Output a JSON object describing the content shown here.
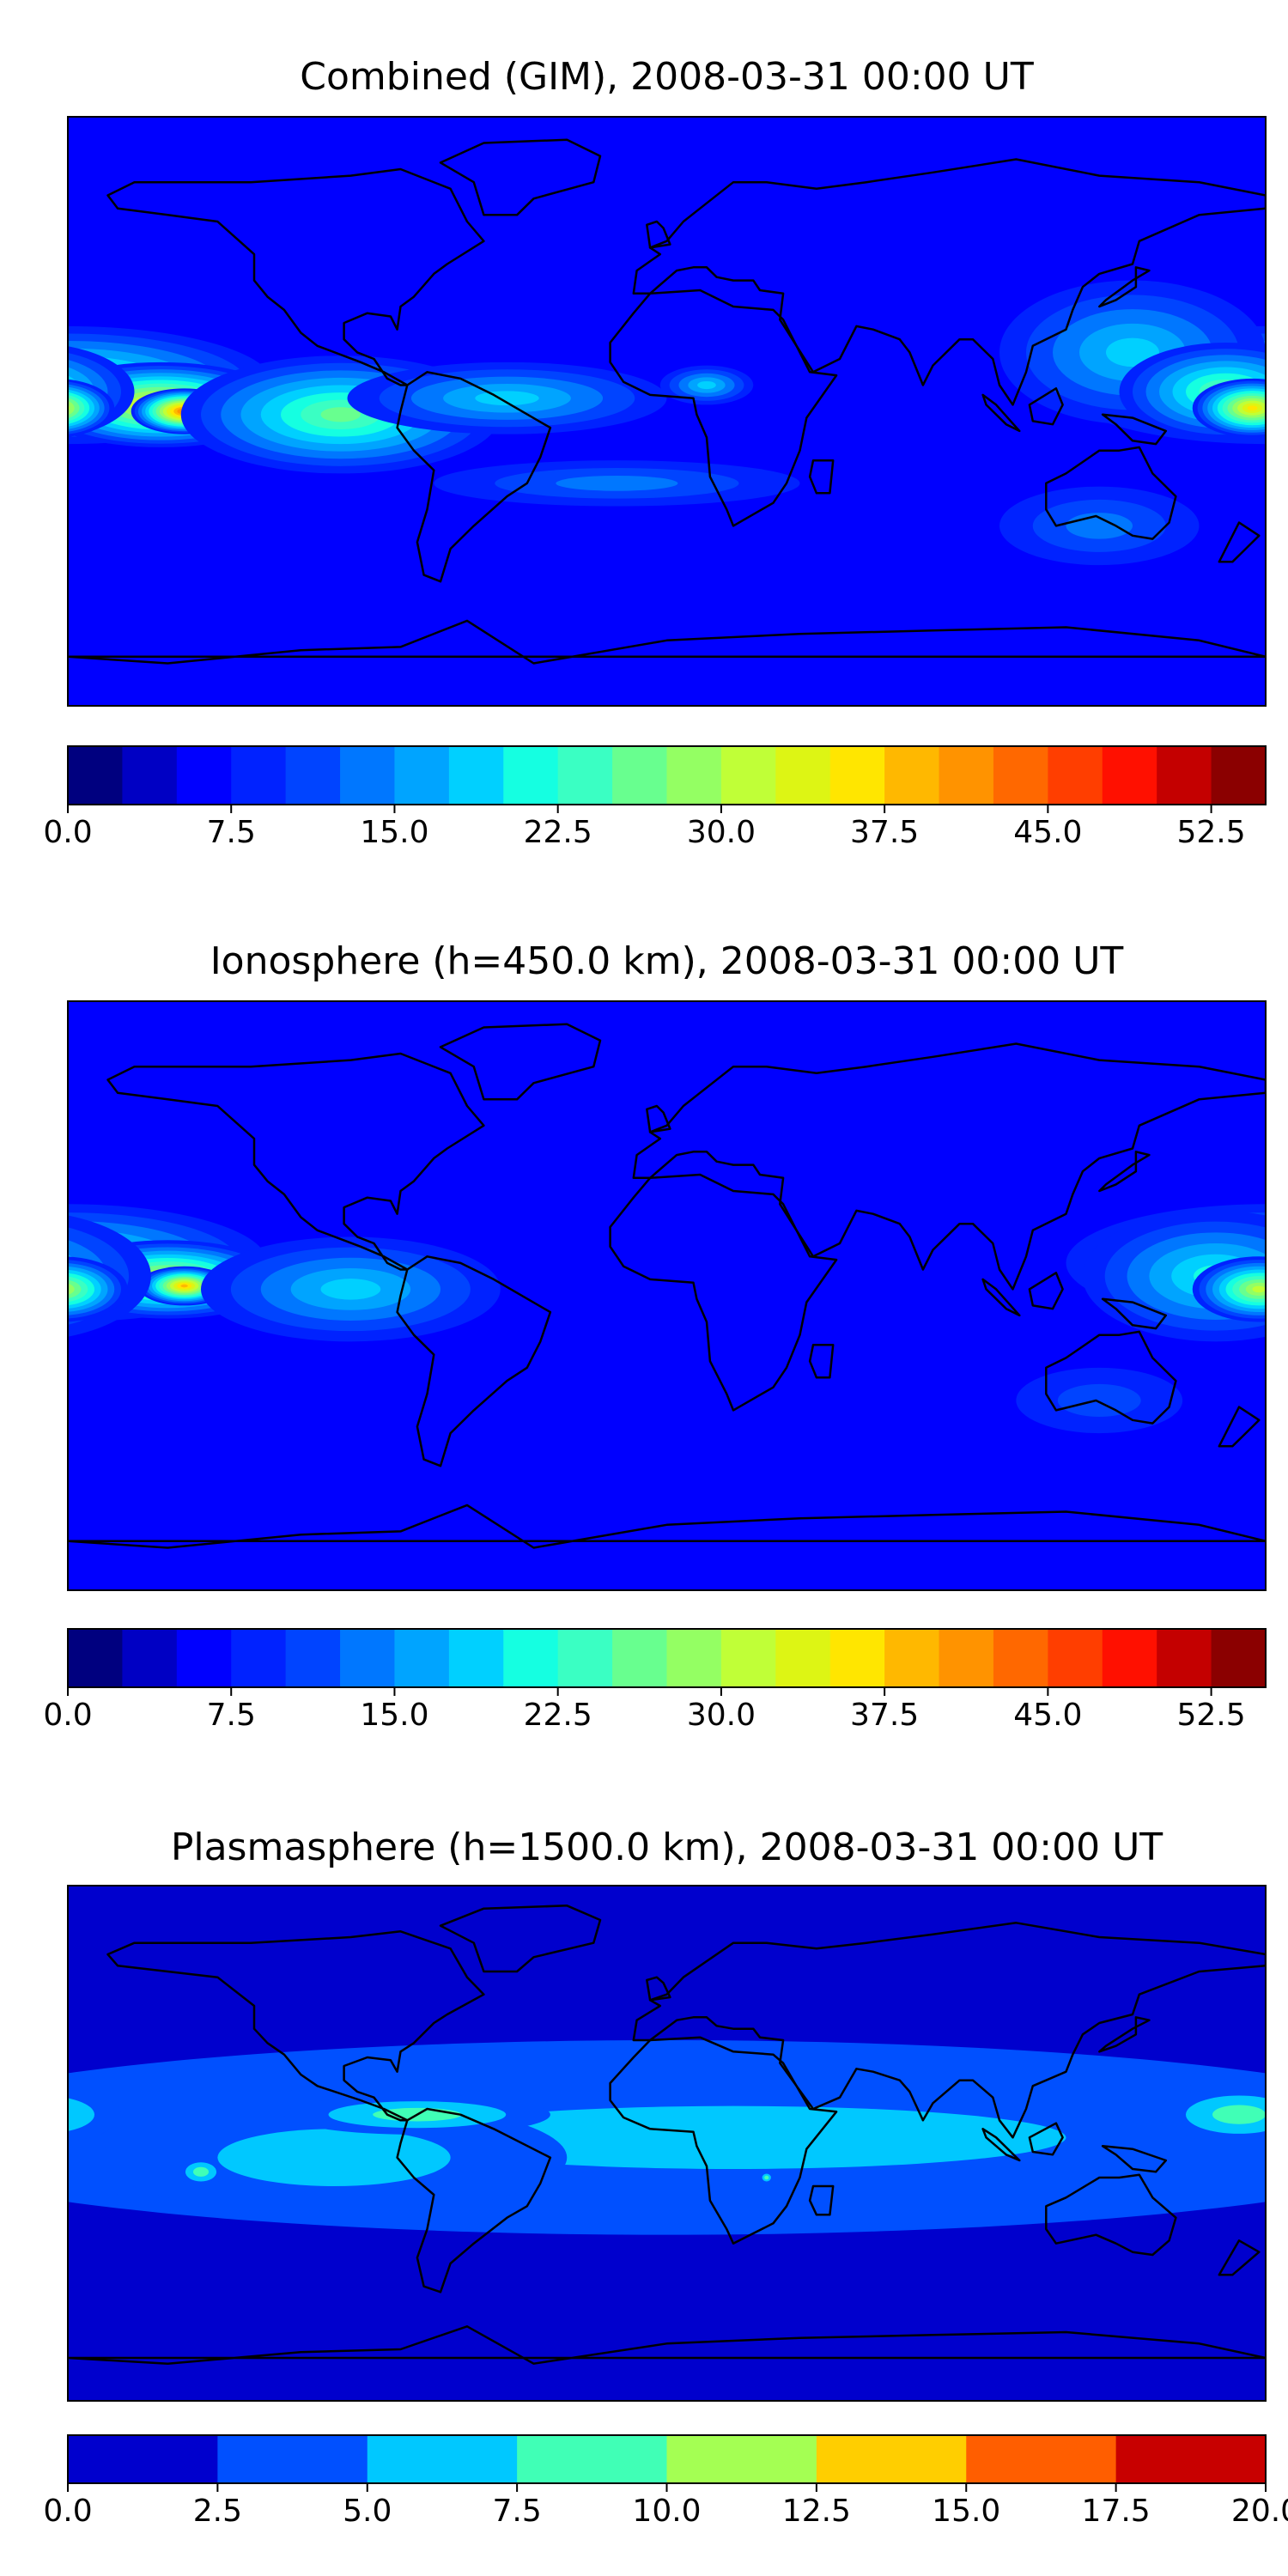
{
  "chart_data": [
    {
      "type": "heatmap",
      "title": "Combined (GIM), 2008-03-31 00:00 UT",
      "grid": false,
      "colorbar": {
        "orientation": "horizontal",
        "placement": "below",
        "range": [
          0,
          55
        ],
        "step": 2.5,
        "tick_labels": [
          "0.0",
          "7.5",
          "15.0",
          "22.5",
          "30.0",
          "37.5",
          "45.0",
          "52.5"
        ],
        "colors": [
          "#00007f",
          "#0000c4",
          "#0000ff",
          "#0022ff",
          "#0044ff",
          "#0077ff",
          "#00a4ff",
          "#00d0ff",
          "#15ffe1",
          "#3affc3",
          "#68ff8f",
          "#94ff63",
          "#c0ff37",
          "#ddf514",
          "#ffe600",
          "#ffb800",
          "#ff9300",
          "#ff6800",
          "#ff3e00",
          "#ff1000",
          "#c40000",
          "#8b0000"
        ]
      },
      "blobs": [
        {
          "lon": -180,
          "lat": 8,
          "level": 10,
          "r_lon": 62,
          "r_lat": 18
        },
        {
          "lon": -152,
          "lat": 2,
          "level": 14,
          "r_lon": 38,
          "r_lat": 13
        },
        {
          "lon": -145,
          "lat": 0,
          "level": 17,
          "r_lon": 16,
          "r_lat": 7
        },
        {
          "lon": -98,
          "lat": -1,
          "level": 10,
          "r_lon": 48,
          "r_lat": 18
        },
        {
          "lon": -48,
          "lat": 4,
          "level": 7,
          "r_lon": 48,
          "r_lat": 11
        },
        {
          "lon": 12,
          "lat": 8,
          "level": 7,
          "r_lon": 14,
          "r_lat": 6
        },
        {
          "lon": -15,
          "lat": -22,
          "level": 5,
          "r_lon": 55,
          "r_lat": 7
        },
        {
          "lon": 140,
          "lat": 18,
          "level": 7,
          "r_lon": 40,
          "r_lat": 22
        },
        {
          "lon": 168,
          "lat": 6,
          "level": 10,
          "r_lon": 32,
          "r_lat": 15
        },
        {
          "lon": 176,
          "lat": 1,
          "level": 14,
          "r_lon": 18,
          "r_lat": 9
        },
        {
          "lon": 130,
          "lat": -35,
          "level": 5,
          "r_lon": 30,
          "r_lat": 12
        },
        {
          "lon": 60,
          "lat": 48,
          "level": 2,
          "r_lon": 70,
          "r_lat": 22
        },
        {
          "lon": 20,
          "lat": -60,
          "level": 2,
          "r_lon": 150,
          "r_lat": 8
        }
      ]
    },
    {
      "type": "heatmap",
      "title": "Ionosphere  (h=450.0 km), 2008-03-31 00:00 UT",
      "grid": false,
      "colorbar": {
        "orientation": "horizontal",
        "placement": "below",
        "range": [
          0,
          55
        ],
        "step": 2.5,
        "tick_labels": [
          "0.0",
          "7.5",
          "15.0",
          "22.5",
          "30.0",
          "37.5",
          "45.0",
          "52.5"
        ],
        "colors": [
          "#00007f",
          "#0000c4",
          "#0000ff",
          "#0022ff",
          "#0044ff",
          "#0077ff",
          "#00a4ff",
          "#00d0ff",
          "#15ffe1",
          "#3affc3",
          "#68ff8f",
          "#94ff63",
          "#c0ff37",
          "#ddf514",
          "#ffe600",
          "#ffb800",
          "#ff9300",
          "#ff6800",
          "#ff3e00",
          "#ff1000",
          "#c40000",
          "#8b0000"
        ]
      },
      "blobs": [
        {
          "lon": 20,
          "lat": 5,
          "level": 1,
          "r_lon": 90,
          "r_lat": 70
        },
        {
          "lon": -180,
          "lat": 10,
          "level": 9,
          "r_lon": 60,
          "r_lat": 18
        },
        {
          "lon": -150,
          "lat": 5,
          "level": 13,
          "r_lon": 35,
          "r_lat": 12
        },
        {
          "lon": -145,
          "lat": 3,
          "level": 15,
          "r_lon": 14,
          "r_lat": 6
        },
        {
          "lon": -95,
          "lat": 2,
          "level": 7,
          "r_lon": 45,
          "r_lat": 16
        },
        {
          "lon": 165,
          "lat": 6,
          "level": 8,
          "r_lon": 40,
          "r_lat": 20
        },
        {
          "lon": 178,
          "lat": 2,
          "level": 12,
          "r_lon": 20,
          "r_lat": 10
        },
        {
          "lon": 130,
          "lat": -32,
          "level": 4,
          "r_lon": 25,
          "r_lat": 10
        },
        {
          "lon": 20,
          "lat": -58,
          "level": 1,
          "r_lon": 150,
          "r_lat": 8
        }
      ]
    },
    {
      "type": "heatmap",
      "title": "Plasmasphere (h=1500.0 km), 2008-03-31 00:00 UT",
      "grid": false,
      "colorbar": {
        "orientation": "horizontal",
        "placement": "below",
        "range": [
          0,
          20
        ],
        "step": 2.5,
        "tick_labels": [
          "0.0",
          "2.5",
          "5.0",
          "7.5",
          "10.0",
          "12.5",
          "15.0",
          "17.5",
          "20.0"
        ],
        "colors": [
          "#0000cd",
          "#0050ff",
          "#00c8ff",
          "#40ffb6",
          "#a4ff53",
          "#ffce00",
          "#ff5e00",
          "#c80000"
        ]
      },
      "blobs": [
        {
          "lon": 0,
          "lat": 2,
          "level": 1,
          "r_lon": 240,
          "r_lat": 34
        },
        {
          "lon": 20,
          "lat": 2,
          "level": 2,
          "r_lon": 200,
          "r_lat": 22
        },
        {
          "lon": -100,
          "lat": -5,
          "level": 2,
          "r_lon": 70,
          "r_lat": 20
        },
        {
          "lon": -75,
          "lat": 10,
          "level": 3,
          "r_lon": 40,
          "r_lat": 7
        },
        {
          "lon": -140,
          "lat": -10,
          "level": 3,
          "r_lon": 7,
          "r_lat": 5
        },
        {
          "lon": -180,
          "lat": 8,
          "level": 3,
          "r_lon": 14,
          "r_lat": 7
        },
        {
          "lon": 172,
          "lat": 10,
          "level": 3,
          "r_lon": 24,
          "r_lat": 10
        },
        {
          "lon": 30,
          "lat": -12,
          "level": 3,
          "r_lon": 2,
          "r_lat": 2
        }
      ]
    }
  ]
}
